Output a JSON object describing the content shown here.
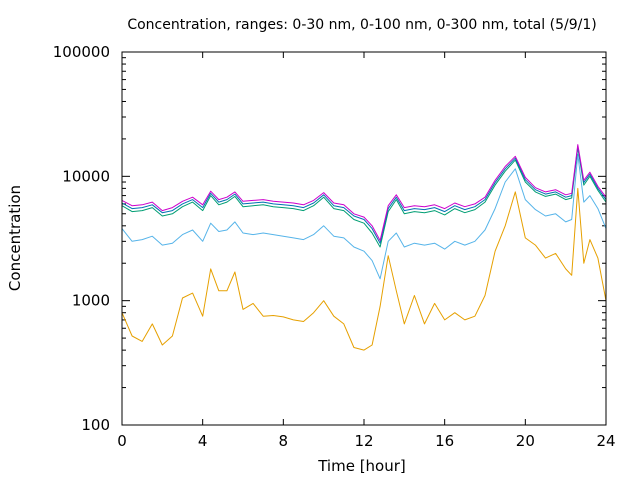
{
  "chart_data": {
    "type": "line",
    "title": "Concentration, ranges: 0-30 nm, 0-100 nm, 0-300 nm, total (5/9/1)",
    "xlabel": "Time [hour]",
    "ylabel": "Concentration",
    "xlim": [
      0,
      24
    ],
    "ylim": [
      100,
      100000
    ],
    "yscale": "log",
    "grid": false,
    "x_ticks": [
      0,
      4,
      8,
      12,
      16,
      20,
      24
    ],
    "x_tick_labels": [
      "0",
      "4",
      "8",
      "12",
      "16",
      "20",
      "24"
    ],
    "y_ticks": [
      100,
      1000,
      10000,
      100000
    ],
    "y_tick_labels": [
      "100",
      "1000",
      "10000",
      "100000"
    ],
    "x": [
      0,
      0.5,
      1,
      1.5,
      2,
      2.5,
      3,
      3.5,
      4,
      4.4,
      4.8,
      5.2,
      5.6,
      6,
      6.5,
      7,
      7.5,
      8,
      8.5,
      9,
      9.5,
      10,
      10.5,
      11,
      11.5,
      12,
      12.4,
      12.8,
      13.2,
      13.6,
      14,
      14.5,
      15,
      15.5,
      16,
      16.5,
      17,
      17.5,
      18,
      18.5,
      19,
      19.5,
      20,
      20.5,
      21,
      21.5,
      22,
      22.3,
      22.6,
      22.9,
      23.2,
      23.6,
      24
    ],
    "series": [
      {
        "color": "#e6a000",
        "values": [
          800,
          520,
          470,
          650,
          440,
          520,
          1050,
          1150,
          750,
          1800,
          1200,
          1200,
          1700,
          850,
          950,
          750,
          760,
          740,
          700,
          680,
          800,
          1000,
          750,
          650,
          420,
          400,
          440,
          900,
          2300,
          1200,
          650,
          1100,
          650,
          950,
          700,
          800,
          700,
          750,
          1100,
          2500,
          4000,
          7500,
          3200,
          2800,
          2200,
          2400,
          1800,
          1600,
          8000,
          2000,
          3100,
          2200,
          1000
        ]
      },
      {
        "color": "#56b4e9",
        "values": [
          3800,
          3000,
          3100,
          3300,
          2800,
          2900,
          3400,
          3700,
          3000,
          4200,
          3600,
          3700,
          4300,
          3500,
          3400,
          3500,
          3400,
          3300,
          3200,
          3100,
          3400,
          4000,
          3300,
          3200,
          2700,
          2500,
          2100,
          1500,
          3000,
          3500,
          2700,
          2900,
          2800,
          2900,
          2600,
          3000,
          2800,
          3000,
          3700,
          5500,
          9000,
          11500,
          6500,
          5400,
          4800,
          5000,
          4300,
          4500,
          15000,
          6200,
          7000,
          5500,
          3800
        ]
      },
      {
        "color": "#009e73",
        "values": [
          5800,
          5200,
          5300,
          5600,
          4800,
          5000,
          5700,
          6200,
          5300,
          7000,
          5900,
          6200,
          6900,
          5700,
          5800,
          5900,
          5700,
          5600,
          5500,
          5300,
          5800,
          6800,
          5500,
          5300,
          4500,
          4200,
          3500,
          2700,
          5200,
          6500,
          5000,
          5200,
          5100,
          5300,
          4900,
          5500,
          5100,
          5400,
          6200,
          8500,
          11000,
          13500,
          9000,
          7500,
          6900,
          7200,
          6500,
          6700,
          17000,
          8500,
          10000,
          7700,
          6200
        ]
      },
      {
        "color": "#0072b2",
        "values": [
          6100,
          5500,
          5600,
          5900,
          5100,
          5300,
          6000,
          6500,
          5600,
          7300,
          6200,
          6500,
          7200,
          6000,
          6100,
          6200,
          6000,
          5900,
          5800,
          5600,
          6100,
          7100,
          5800,
          5600,
          4800,
          4500,
          3800,
          2900,
          5500,
          6800,
          5300,
          5500,
          5400,
          5600,
          5200,
          5800,
          5400,
          5700,
          6500,
          8900,
          11500,
          14000,
          9400,
          7800,
          7200,
          7500,
          6800,
          7000,
          17500,
          8900,
          10400,
          8000,
          6500
        ]
      },
      {
        "color": "#cc00cc",
        "values": [
          6400,
          5800,
          5900,
          6200,
          5300,
          5600,
          6300,
          6800,
          5900,
          7600,
          6500,
          6800,
          7500,
          6300,
          6400,
          6500,
          6300,
          6200,
          6100,
          5900,
          6400,
          7400,
          6100,
          5900,
          5000,
          4700,
          4000,
          3050,
          5800,
          7100,
          5600,
          5800,
          5700,
          5900,
          5500,
          6100,
          5700,
          6000,
          6800,
          9300,
          12000,
          14500,
          9800,
          8100,
          7500,
          7800,
          7100,
          7300,
          18000,
          9300,
          10800,
          8300,
          6800
        ]
      }
    ]
  }
}
